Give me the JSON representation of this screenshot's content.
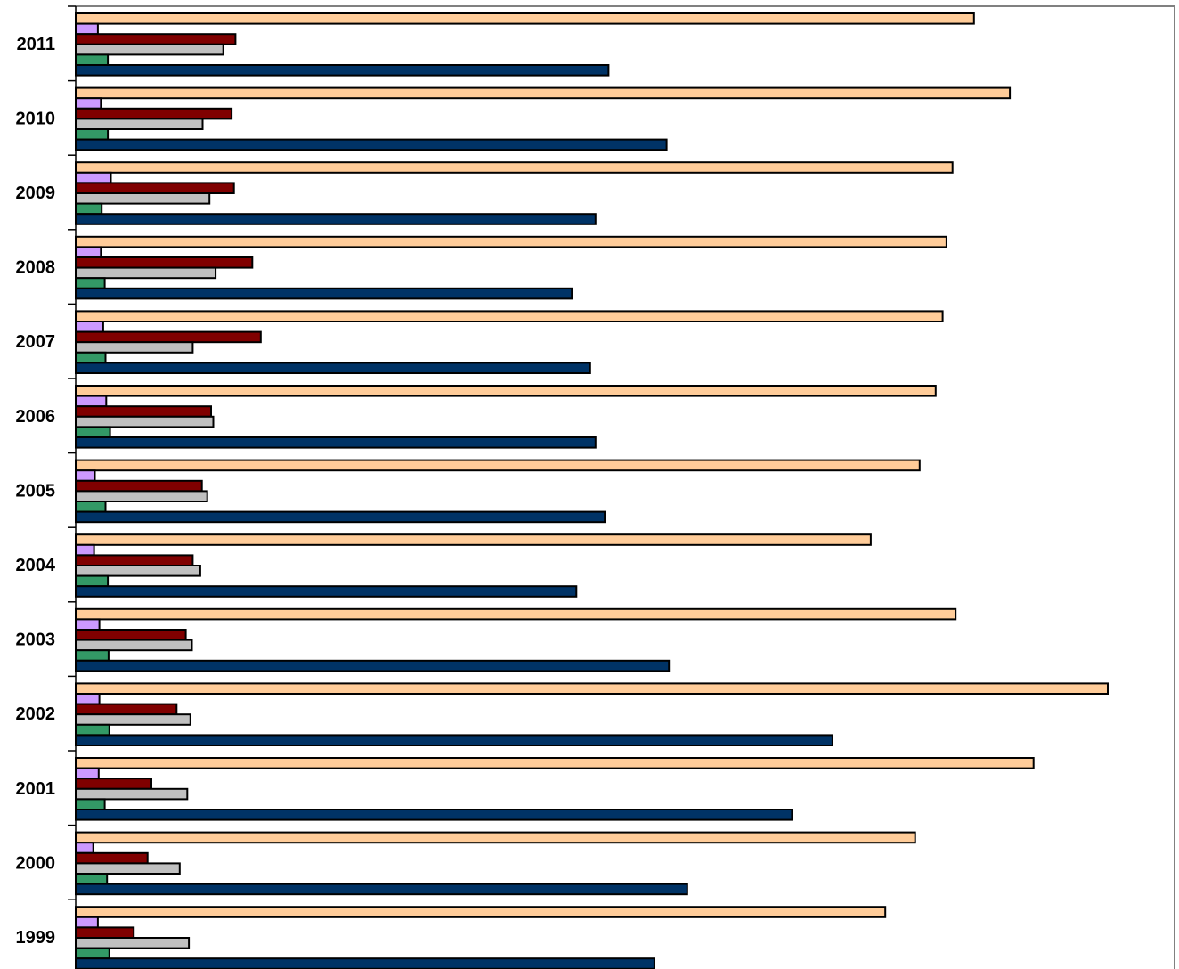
{
  "chart_data": {
    "type": "bar",
    "orientation": "horizontal",
    "title": "",
    "xlabel": "",
    "ylabel": "",
    "grid": false,
    "legend": "none",
    "xlim": [
      0,
      1350
    ],
    "categories": [
      "2011",
      "2010",
      "2009",
      "2008",
      "2007",
      "2006",
      "2005",
      "2004",
      "2003",
      "2002",
      "2001",
      "2000",
      "1999"
    ],
    "series": [
      {
        "color": "#FFCC99",
        "values": [
          1175,
          1222,
          1147,
          1139,
          1134,
          1125,
          1104,
          1040,
          1151,
          1350,
          1253,
          1098,
          1059
        ]
      },
      {
        "color": "#CC99FF",
        "values": [
          29,
          33,
          46,
          33,
          36,
          40,
          25,
          24,
          31,
          31,
          30,
          23,
          29
        ]
      },
      {
        "color": "#800000",
        "values": [
          209,
          204,
          207,
          231,
          242,
          177,
          165,
          153,
          144,
          132,
          99,
          94,
          76
        ]
      },
      {
        "color": "#C0C0C0",
        "values": [
          193,
          166,
          175,
          183,
          153,
          180,
          172,
          163,
          152,
          150,
          146,
          136,
          148
        ]
      },
      {
        "color": "#339966",
        "values": [
          42,
          42,
          34,
          38,
          39,
          45,
          39,
          42,
          43,
          44,
          38,
          41,
          44
        ]
      },
      {
        "color": "#003366",
        "values": [
          697,
          773,
          680,
          649,
          673,
          680,
          692,
          655,
          776,
          990,
          937,
          800,
          757
        ]
      }
    ]
  }
}
